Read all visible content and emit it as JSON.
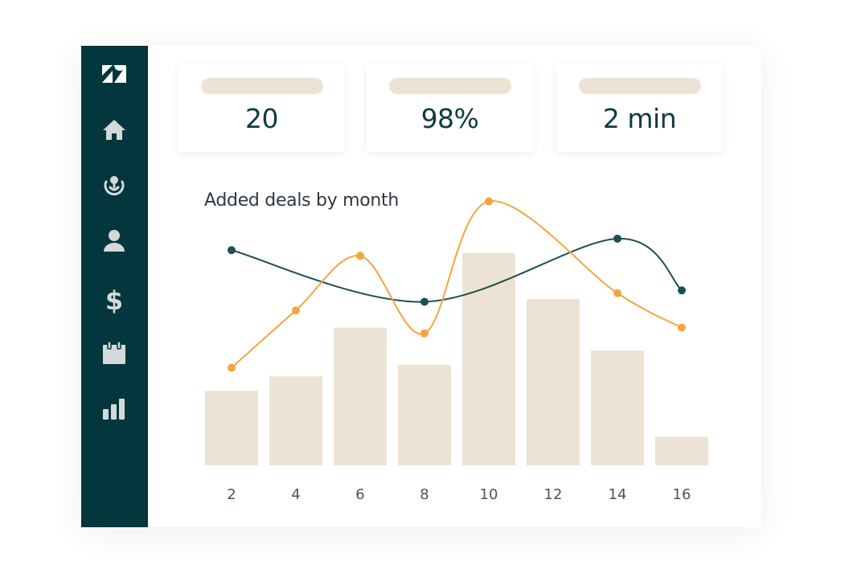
{
  "sidebar": {
    "items": [
      {
        "name": "zendesk-logo-icon",
        "icon": "zendesk-logo"
      },
      {
        "name": "home-icon",
        "icon": "home"
      },
      {
        "name": "pipeline-icon",
        "icon": "pipeline"
      },
      {
        "name": "user-icon",
        "icon": "user"
      },
      {
        "name": "dollar-icon",
        "icon": "dollar",
        "glyph": "$"
      },
      {
        "name": "calendar-icon",
        "icon": "calendar"
      },
      {
        "name": "reports-icon",
        "icon": "bar-chart"
      }
    ]
  },
  "stats": [
    {
      "value": "20"
    },
    {
      "value": "98%"
    },
    {
      "value": "2 min"
    }
  ],
  "chart_data": {
    "type": "bar",
    "title": "Added deals by month",
    "categories": [
      "2",
      "4",
      "6",
      "8",
      "10",
      "12",
      "14",
      "16"
    ],
    "bars": {
      "values": [
        26,
        31,
        48,
        35,
        74,
        58,
        40,
        10
      ],
      "color": "#ede3d4"
    },
    "series": [
      {
        "type": "line",
        "values": [
          75,
          57,
          79,
          61
        ],
        "x": [
          "2",
          "8",
          "14",
          "16"
        ],
        "color": "#1f4f52"
      },
      {
        "type": "line",
        "values": [
          34,
          54,
          73,
          46,
          92,
          60,
          48
        ],
        "x": [
          "2",
          "4",
          "6",
          "8",
          "10",
          "14",
          "16"
        ],
        "color": "#f4a540"
      }
    ],
    "ylim": [
      0,
      100
    ],
    "grid": false
  },
  "colors": {
    "sidebar": "#03363d",
    "accent_orange": "#f4a540",
    "accent_dark": "#1f4f52",
    "bar": "#ede3d4"
  }
}
